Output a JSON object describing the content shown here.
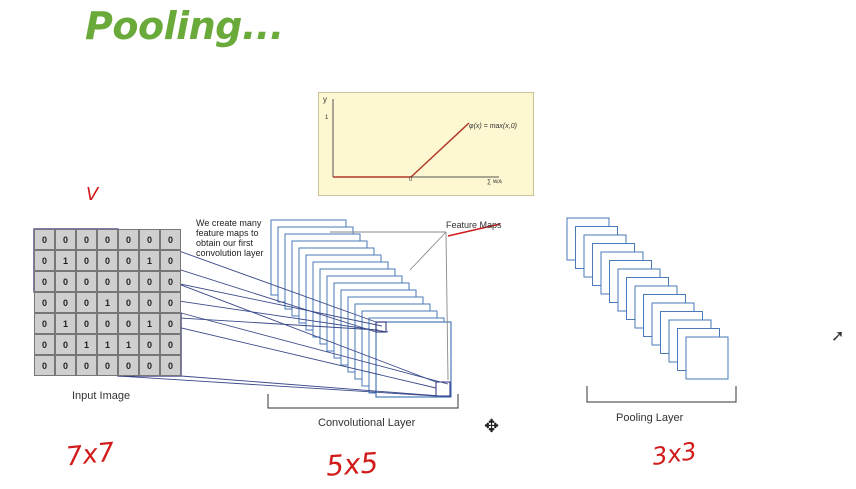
{
  "title": "Pooling...",
  "relu": {
    "y_axis": "y",
    "tick_y": "1",
    "tick_x": "0",
    "formula": "φ(x) = max(x,0)",
    "sum_label": "∑ wᵢxᵢ",
    "line_color": "#b23a2a"
  },
  "input_image": {
    "label": "Input Image",
    "grid": [
      [
        "0",
        "0",
        "0",
        "0",
        "0",
        "0",
        "0"
      ],
      [
        "0",
        "1",
        "0",
        "0",
        "0",
        "1",
        "0"
      ],
      [
        "0",
        "0",
        "0",
        "0",
        "0",
        "0",
        "0"
      ],
      [
        "0",
        "0",
        "0",
        "1",
        "0",
        "0",
        "0"
      ],
      [
        "0",
        "1",
        "0",
        "0",
        "0",
        "1",
        "0"
      ],
      [
        "0",
        "0",
        "1",
        "1",
        "1",
        "0",
        "0"
      ],
      [
        "0",
        "0",
        "0",
        "0",
        "0",
        "0",
        "0"
      ]
    ]
  },
  "conv_note": "We create many feature maps to obtain our first convolution layer",
  "feature_maps_label": "Feature Maps",
  "conv_label": "Convolutional Layer",
  "pool_label": "Pooling Layer",
  "annotations": {
    "input_size": "7x7",
    "conv_size": "5x5",
    "pool_size": "3x3"
  },
  "colors": {
    "title": "#6aaa3a",
    "stack_blue": "#4a7ab8",
    "handwriting": "#d21a1a"
  }
}
